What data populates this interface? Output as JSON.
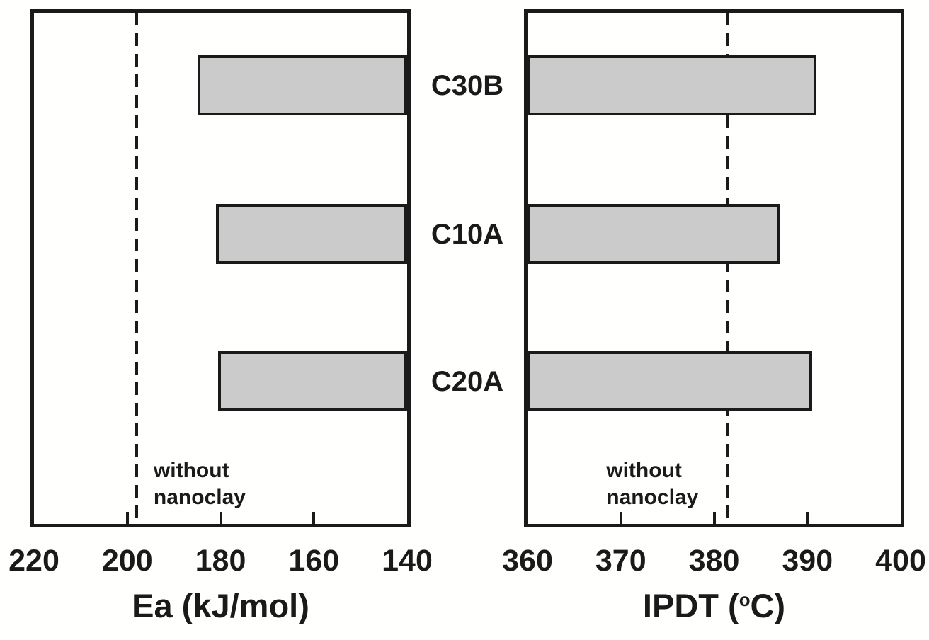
{
  "figure": {
    "background": "#fffffe",
    "ink_color": "#1a1a1a",
    "description": "Two-panel horizontal bar chart comparing activation energy (Ea) and integral procedural decomposition temperature (IPDT) of epoxy with three nanoclays versus epoxy without nanoclay"
  },
  "chart_data": {
    "type": "bar",
    "orientation": "horizontal",
    "grid": false,
    "legend": false,
    "categories": [
      "C30B",
      "C10A",
      "C20A"
    ],
    "bar_fill": "#cbcbcb",
    "bar_border": "#1a1a1a",
    "panels": [
      {
        "xlabel": "Ea (kJ/mol)",
        "xlabel_parts": [
          {
            "text": "Ea (kJ/mol)",
            "sup": false
          }
        ],
        "axis_left_value": 220,
        "axis_right_value": 140,
        "ticks": [
          220,
          200,
          180,
          160,
          140
        ],
        "bar_baseline": 140,
        "values": [
          185,
          181,
          180.5
        ],
        "reference_line": {
          "value": 198,
          "label": "without nanoclay",
          "label_side": "right"
        }
      },
      {
        "xlabel": "IPDT (°C)",
        "xlabel_parts": [
          {
            "text": "IPDT (",
            "sup": false
          },
          {
            "text": "o",
            "sup": true
          },
          {
            "text": "C)",
            "sup": false
          }
        ],
        "axis_left_value": 360,
        "axis_right_value": 400,
        "ticks": [
          360,
          370,
          380,
          390,
          400
        ],
        "bar_baseline": 360,
        "values": [
          391,
          387,
          390.5
        ],
        "reference_line": {
          "value": 381.5,
          "label": "without nanoclay",
          "label_side": "left"
        }
      }
    ]
  }
}
